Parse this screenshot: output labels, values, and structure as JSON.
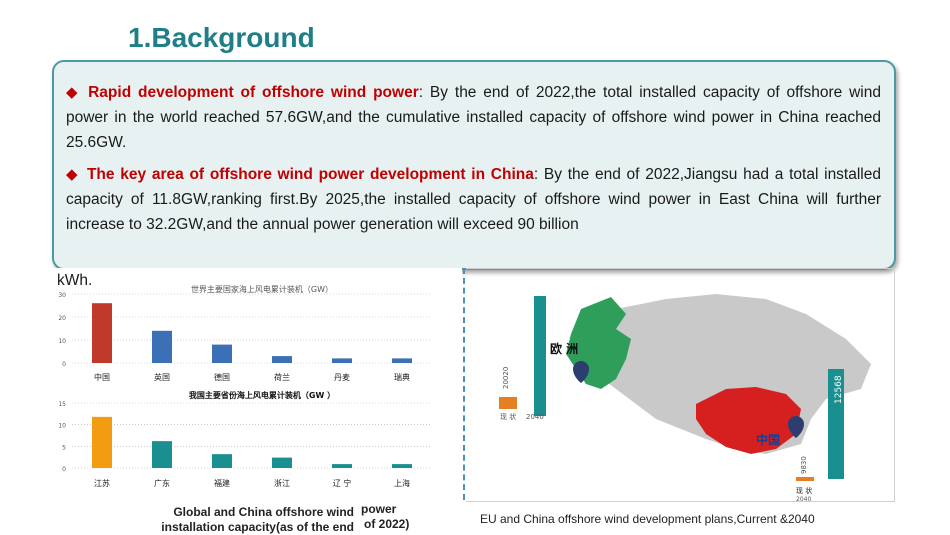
{
  "slide": {
    "title": "1.Background",
    "bullet1_head": "Rapid development of offshore wind power",
    "bullet1_text": ": By the end of 2022,the total installed capacity of offshore wind power in the world reached 57.6GW,and the cumulative installed capacity of offshore wind power in China reached 25.6GW.",
    "bullet2_head": "The key area of offshore wind power development in China",
    "bullet2_text": ": By the end of 2022,Jiangsu had a total installed capacity of 11.8GW,ranking first.By 2025,the installed capacity of offshore wind power in East China will further increase to 32.2GW,and the annual power generation will exceed 90 billion",
    "bullet2_tail": "kWh.",
    "caption_left": "Global and China offshore wind installation capacity(as of the end",
    "caption_left_b": "power",
    "caption_left_c": "of 2022)",
    "caption_right": "EU and China offshore wind development plans,Current &2040",
    "bullet_color": "#c00000",
    "accent": "#1f7f86"
  },
  "chart_data": [
    {
      "type": "bar",
      "title": "世界主要国家海上风电累计装机（GW）",
      "categories": [
        "中国",
        "英国",
        "德国",
        "荷兰",
        "丹麦",
        "瑞典"
      ],
      "values": [
        26,
        14,
        8,
        3,
        2,
        2
      ],
      "ylim": [
        0,
        30
      ],
      "yticks": [
        "0",
        "10",
        "20",
        "30"
      ],
      "series_colors": [
        "#c0392b",
        "#3b6fb6",
        "#3b6fb6",
        "#3b6fb6",
        "#3b6fb6",
        "#3b6fb6"
      ]
    },
    {
      "type": "bar",
      "title": "我国主要省份海上风电累计装机（GW ）",
      "categories": [
        "江苏",
        "广东",
        "福建",
        "浙江",
        "辽 宁",
        "上海"
      ],
      "values": [
        11.8,
        6.2,
        3.2,
        2.4,
        0.9,
        0.9
      ],
      "ylim": [
        0,
        15
      ],
      "yticks": [
        "0",
        "5",
        "10",
        "15"
      ],
      "series_colors": [
        "#f39c12",
        "#1a8f8f",
        "#1a8f8f",
        "#1a8f8f",
        "#1a8f8f",
        "#1a8f8f"
      ]
    }
  ],
  "map": {
    "label_europe": "欧 洲",
    "label_china": "中国",
    "eu_current_val": "20020",
    "eu_current_label": "现 状",
    "eu_2040_label": "2040",
    "cn_2040_val": "12568",
    "cn_current_val": "9830",
    "cn_current_label": "现 状",
    "cn_2040_label": "2040"
  }
}
